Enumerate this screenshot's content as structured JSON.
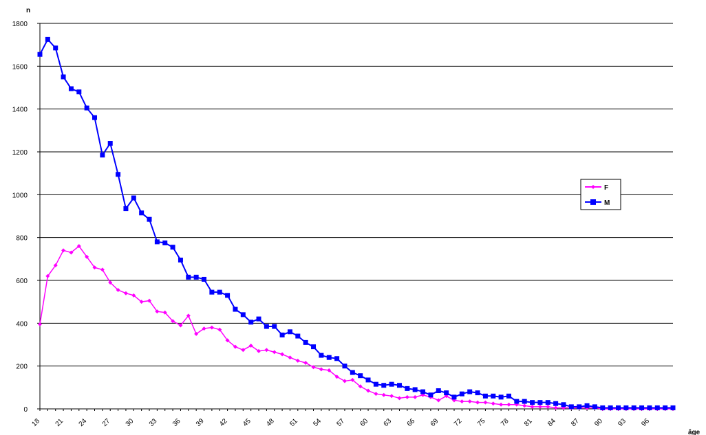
{
  "chart_data": {
    "type": "line",
    "title": "",
    "ylabel": "n",
    "xlabel": "âge",
    "ylim": [
      0,
      1800
    ],
    "yticks": [
      0,
      200,
      400,
      600,
      800,
      1000,
      1200,
      1400,
      1600,
      1800
    ],
    "xlim": [
      18,
      99
    ],
    "xticks": [
      18,
      21,
      24,
      27,
      30,
      33,
      36,
      39,
      42,
      45,
      48,
      51,
      54,
      57,
      60,
      63,
      66,
      69,
      72,
      75,
      78,
      81,
      84,
      87,
      90,
      93,
      96
    ],
    "grid": true,
    "legend_position": "right",
    "x": [
      18,
      19,
      20,
      21,
      22,
      23,
      24,
      25,
      26,
      27,
      28,
      29,
      30,
      31,
      32,
      33,
      34,
      35,
      36,
      37,
      38,
      39,
      40,
      41,
      42,
      43,
      44,
      45,
      46,
      47,
      48,
      49,
      50,
      51,
      52,
      53,
      54,
      55,
      56,
      57,
      58,
      59,
      60,
      61,
      62,
      63,
      64,
      65,
      66,
      67,
      68,
      69,
      70,
      71,
      72,
      73,
      74,
      75,
      76,
      77,
      78,
      79,
      80,
      81,
      82,
      83,
      84,
      85,
      86,
      87,
      88,
      89,
      90,
      91,
      92,
      93,
      94,
      95,
      96,
      97,
      98,
      99
    ],
    "series": [
      {
        "name": "F",
        "color": "#ff00ff",
        "marker": "diamond",
        "values": [
          395,
          620,
          670,
          740,
          730,
          760,
          710,
          660,
          650,
          590,
          555,
          540,
          530,
          500,
          505,
          455,
          450,
          410,
          390,
          435,
          350,
          375,
          380,
          370,
          320,
          290,
          275,
          295,
          270,
          275,
          265,
          255,
          240,
          225,
          215,
          195,
          185,
          180,
          150,
          130,
          135,
          105,
          85,
          70,
          65,
          60,
          50,
          55,
          55,
          65,
          55,
          40,
          60,
          40,
          35,
          35,
          30,
          30,
          25,
          20,
          20,
          20,
          15,
          10,
          10,
          10,
          5,
          5,
          5,
          5,
          5,
          5,
          0,
          0,
          0,
          0,
          0,
          0,
          0,
          0,
          0,
          0
        ]
      },
      {
        "name": "M",
        "color": "#0000ff",
        "marker": "square",
        "values": [
          1655,
          1725,
          1685,
          1550,
          1495,
          1480,
          1405,
          1360,
          1185,
          1240,
          1095,
          935,
          985,
          915,
          885,
          780,
          775,
          755,
          695,
          615,
          615,
          605,
          545,
          545,
          530,
          465,
          440,
          405,
          420,
          385,
          385,
          345,
          360,
          340,
          310,
          290,
          250,
          240,
          235,
          200,
          170,
          155,
          135,
          115,
          110,
          115,
          110,
          95,
          90,
          80,
          65,
          85,
          75,
          55,
          70,
          80,
          75,
          60,
          60,
          55,
          60,
          35,
          35,
          30,
          30,
          30,
          25,
          20,
          10,
          10,
          15,
          10,
          5,
          5,
          5,
          5,
          5,
          5,
          5,
          5,
          5,
          5
        ]
      }
    ]
  }
}
